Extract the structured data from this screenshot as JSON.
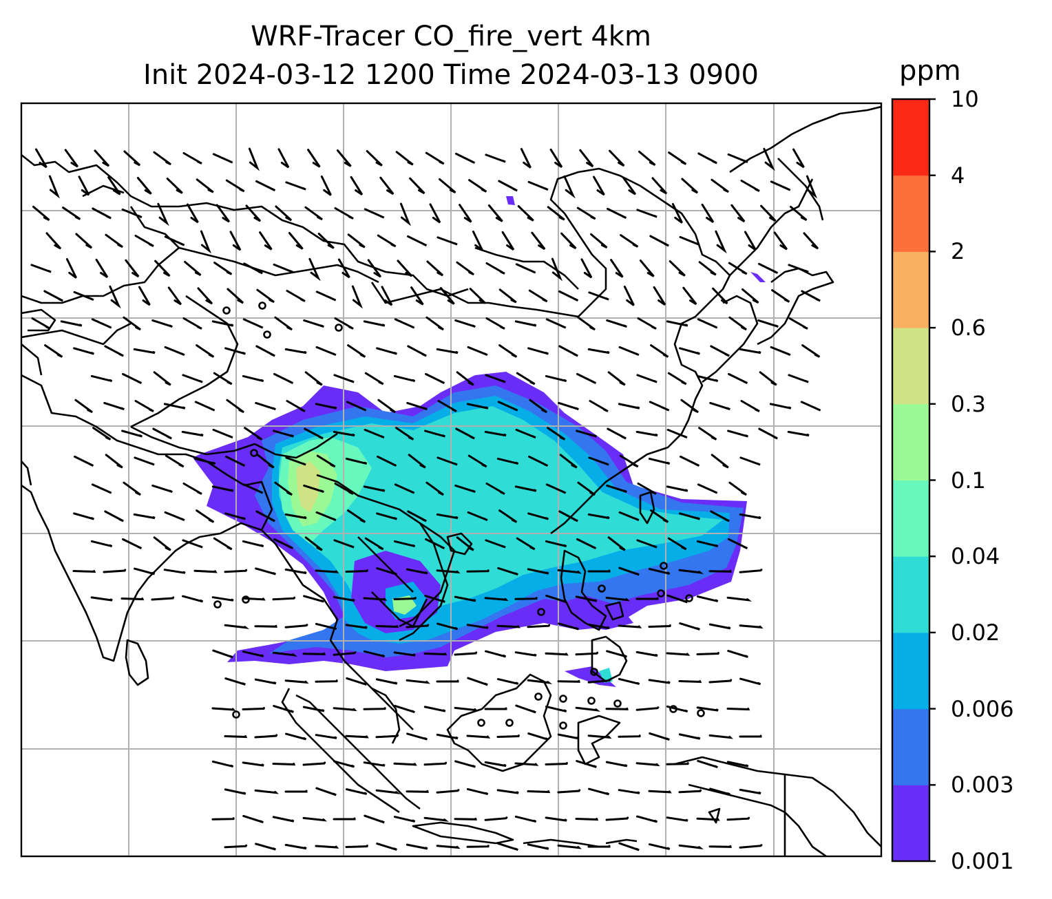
{
  "title": {
    "line1": "WRF-Tracer CO_fire_vert 4km",
    "line2": "Init 2024-03-12 1200 Time 2024-03-13 0900"
  },
  "colorbar": {
    "unit": "ppm",
    "levels": [
      "0.001",
      "0.003",
      "0.006",
      "0.02",
      "0.04",
      "0.1",
      "0.3",
      "0.6",
      "2",
      "4",
      "10"
    ],
    "colors": [
      "#6a2df7",
      "#3476f0",
      "#06aee8",
      "#30ddd6",
      "#67f8be",
      "#9af995",
      "#cfe385",
      "#fbb061",
      "#fd7039",
      "#fb2a16"
    ]
  },
  "map": {
    "gridlines": true,
    "coastline_color": "#000000",
    "overlay": "wind-barbs"
  }
}
